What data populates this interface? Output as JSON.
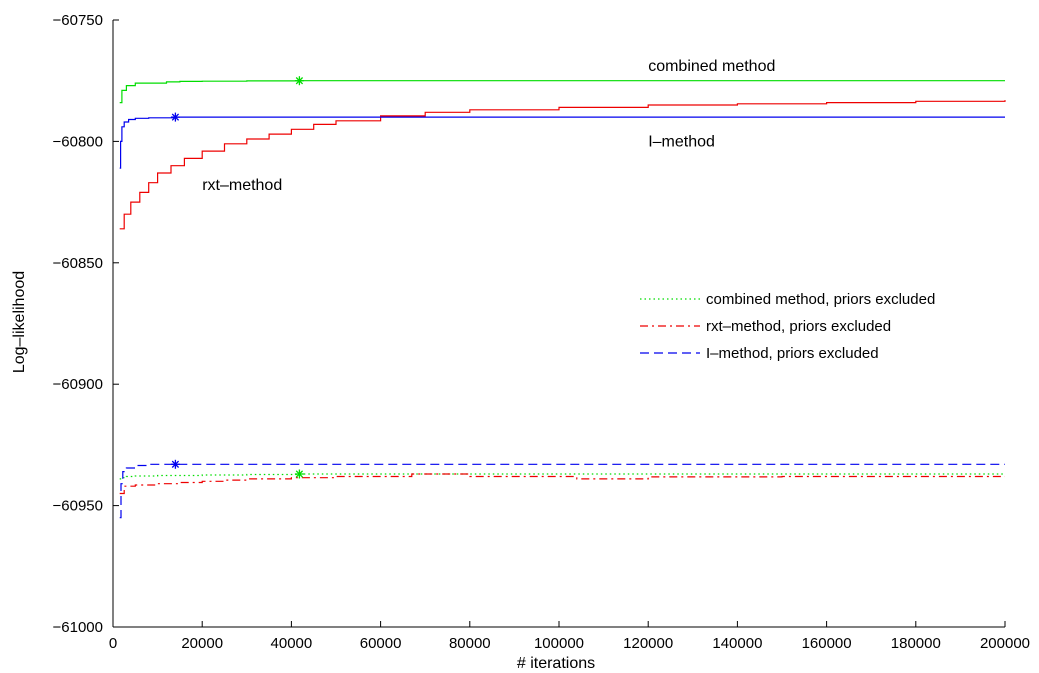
{
  "chart_data": {
    "type": "line",
    "xlabel": "# iterations",
    "ylabel": "Log–likelihood",
    "xlim": [
      0,
      200000
    ],
    "ylim": [
      -61000,
      -60750
    ],
    "xticks": [
      0,
      20000,
      40000,
      60000,
      80000,
      100000,
      120000,
      140000,
      160000,
      180000,
      200000
    ],
    "yticks": [
      -61000,
      -60950,
      -60900,
      -60850,
      -60800,
      -60750
    ],
    "xtick_labels": [
      "0",
      "20000",
      "40000",
      "60000",
      "80000",
      "100000",
      "120000",
      "140000",
      "160000",
      "180000",
      "200000"
    ],
    "ytick_labels": [
      "−61000",
      "−60950",
      "−60900",
      "−60850",
      "−60800",
      "−60750"
    ],
    "grid": false,
    "legend_position": "right",
    "colors": {
      "green": "#00dd00",
      "red": "#ee0000",
      "blue": "#0000ee"
    },
    "series": [
      {
        "name": "combined method",
        "color": "#00dd00",
        "dash": "solid",
        "legend": false,
        "x": [
          1500,
          2000,
          3000,
          5000,
          8000,
          12000,
          15000,
          20000,
          30000,
          42000,
          60000,
          100000,
          150000,
          200000
        ],
        "y": [
          -60784,
          -60779,
          -60777,
          -60776,
          -60776,
          -60775.5,
          -60775.3,
          -60775.2,
          -60775.1,
          -60775,
          -60775,
          -60775,
          -60775,
          -60775
        ]
      },
      {
        "name": "rxt–method",
        "color": "#ee0000",
        "dash": "solid",
        "legend": false,
        "x": [
          1500,
          2500,
          4000,
          6000,
          8000,
          10000,
          13000,
          16000,
          20000,
          25000,
          30000,
          35000,
          40000,
          45000,
          50000,
          60000,
          70000,
          80000,
          100000,
          120000,
          140000,
          160000,
          180000,
          200000
        ],
        "y": [
          -60836,
          -60830,
          -60825,
          -60821,
          -60817,
          -60813,
          -60810,
          -60807,
          -60804,
          -60801,
          -60799,
          -60797,
          -60795,
          -60793,
          -60791.5,
          -60789.5,
          -60788,
          -60787,
          -60786,
          -60785,
          -60784.5,
          -60784,
          -60783.5,
          -60783
        ]
      },
      {
        "name": "I–method",
        "color": "#0000ee",
        "dash": "solid",
        "legend": false,
        "x": [
          1500,
          1700,
          2000,
          2500,
          3500,
          5000,
          8000,
          14000,
          30000,
          60000,
          100000,
          150000,
          200000
        ],
        "y": [
          -60811,
          -60800,
          -60794,
          -60792,
          -60791,
          -60790.5,
          -60790.3,
          -60790,
          -60790,
          -60790,
          -60790,
          -60790,
          -60790
        ]
      },
      {
        "name": "combined method, priors excluded",
        "color": "#00dd00",
        "dash": "dotted",
        "legend": true,
        "x": [
          1500,
          2000,
          3000,
          5000,
          10000,
          20000,
          30000,
          42000,
          60000,
          100000,
          150000,
          200000
        ],
        "y": [
          -60939,
          -60938.5,
          -60938,
          -60937.8,
          -60937.6,
          -60937.4,
          -60937.2,
          -60937,
          -60937,
          -60937,
          -60937,
          -60937
        ]
      },
      {
        "name": "rxt–method, priors excluded",
        "color": "#ee0000",
        "dash": "dashdot",
        "legend": true,
        "x": [
          1500,
          2500,
          5000,
          10000,
          15000,
          20000,
          25000,
          30000,
          40000,
          50000,
          60000,
          67000,
          80000,
          100000,
          104000,
          120000,
          150000,
          180000,
          200000
        ],
        "y": [
          -60945,
          -60942,
          -60941.5,
          -60941,
          -60940.5,
          -60940,
          -60939.5,
          -60939,
          -60938.5,
          -60938,
          -60938,
          -60937,
          -60938,
          -60938,
          -60939,
          -60938.2,
          -60938,
          -60938,
          -60938
        ]
      },
      {
        "name": "I–method, priors excluded",
        "color": "#0000ee",
        "dash": "dashed",
        "legend": true,
        "x": [
          1500,
          1800,
          2200,
          3000,
          5000,
          8000,
          14000,
          30000,
          60000,
          100000,
          150000,
          200000
        ],
        "y": [
          -60955,
          -60941,
          -60936,
          -60934.5,
          -60933.5,
          -60933,
          -60933,
          -60933,
          -60933,
          -60933,
          -60933,
          -60933
        ]
      }
    ],
    "markers": [
      {
        "x": 41800,
        "y": -60775,
        "color": "#00dd00",
        "symbol": "*"
      },
      {
        "x": 14000,
        "y": -60790,
        "color": "#0000ee",
        "symbol": "*"
      },
      {
        "x": 41800,
        "y": -60937,
        "color": "#00dd00",
        "symbol": "*"
      },
      {
        "x": 14000,
        "y": -60933,
        "color": "#0000ee",
        "symbol": "*"
      }
    ],
    "annotations": [
      {
        "text": "combined method",
        "x": 120000,
        "y": -60771,
        "anchor": "start"
      },
      {
        "text": "I–method",
        "x": 120000,
        "y": -60802,
        "anchor": "start"
      },
      {
        "text": "rxt–method",
        "x": 20000,
        "y": -60820,
        "anchor": "start"
      }
    ]
  }
}
